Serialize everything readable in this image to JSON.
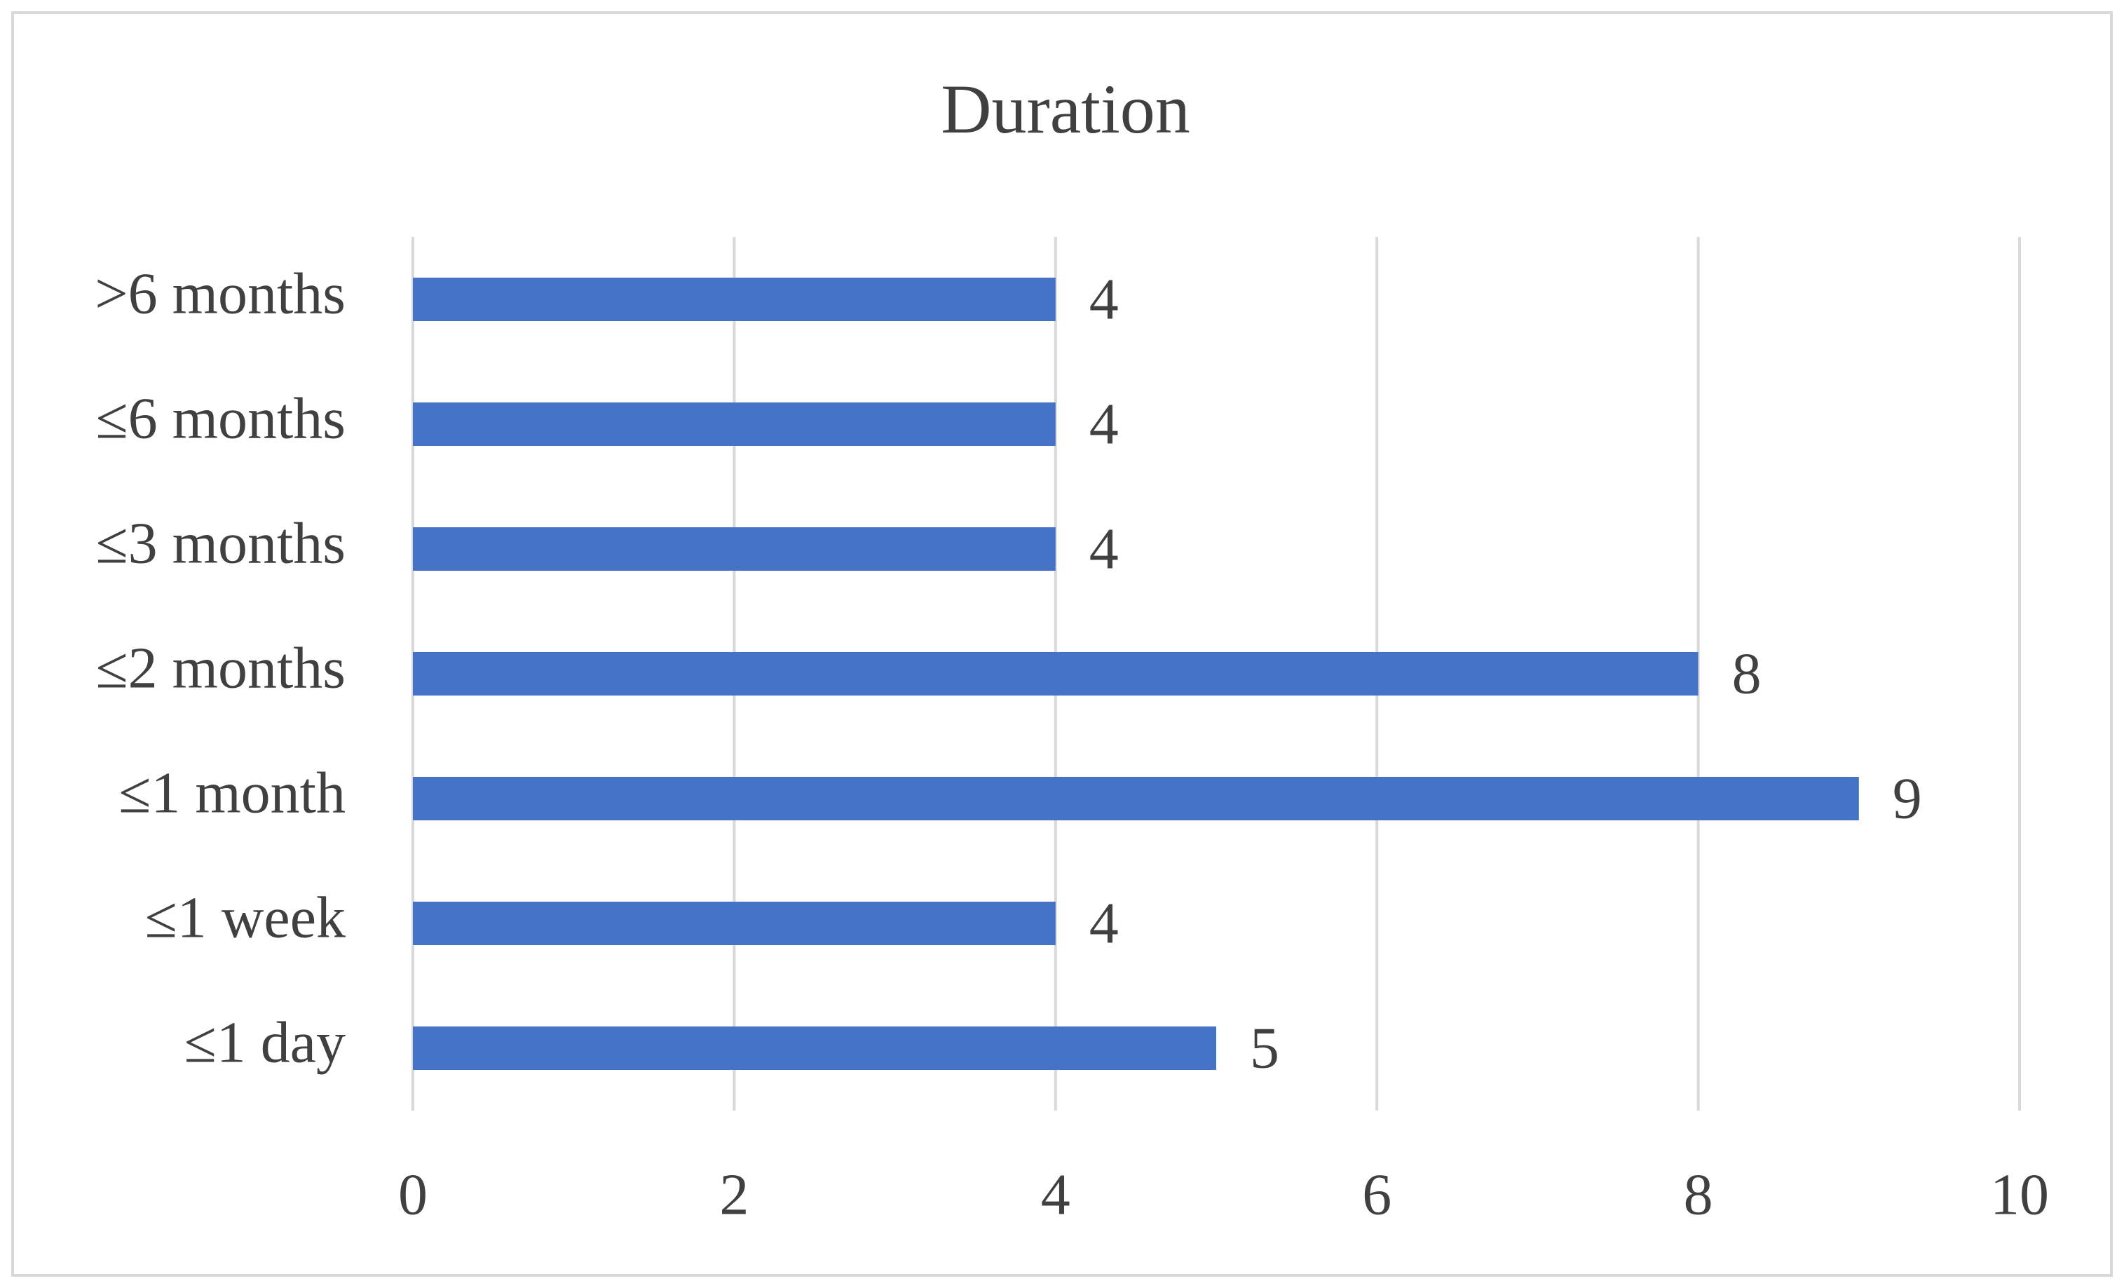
{
  "chart_data": {
    "type": "hbar",
    "title": "Duration",
    "categories": [
      "≤1 day",
      "≤1 week",
      "≤1 month",
      "≤2 months",
      "≤3 months",
      "≤6 months",
      ">6 months"
    ],
    "values": [
      5,
      4,
      9,
      8,
      4,
      4,
      4
    ],
    "color": "#4472c4",
    "xlim": [
      0,
      10
    ],
    "xticks": [
      0,
      2,
      4,
      6,
      8,
      10
    ],
    "grid": true
  }
}
